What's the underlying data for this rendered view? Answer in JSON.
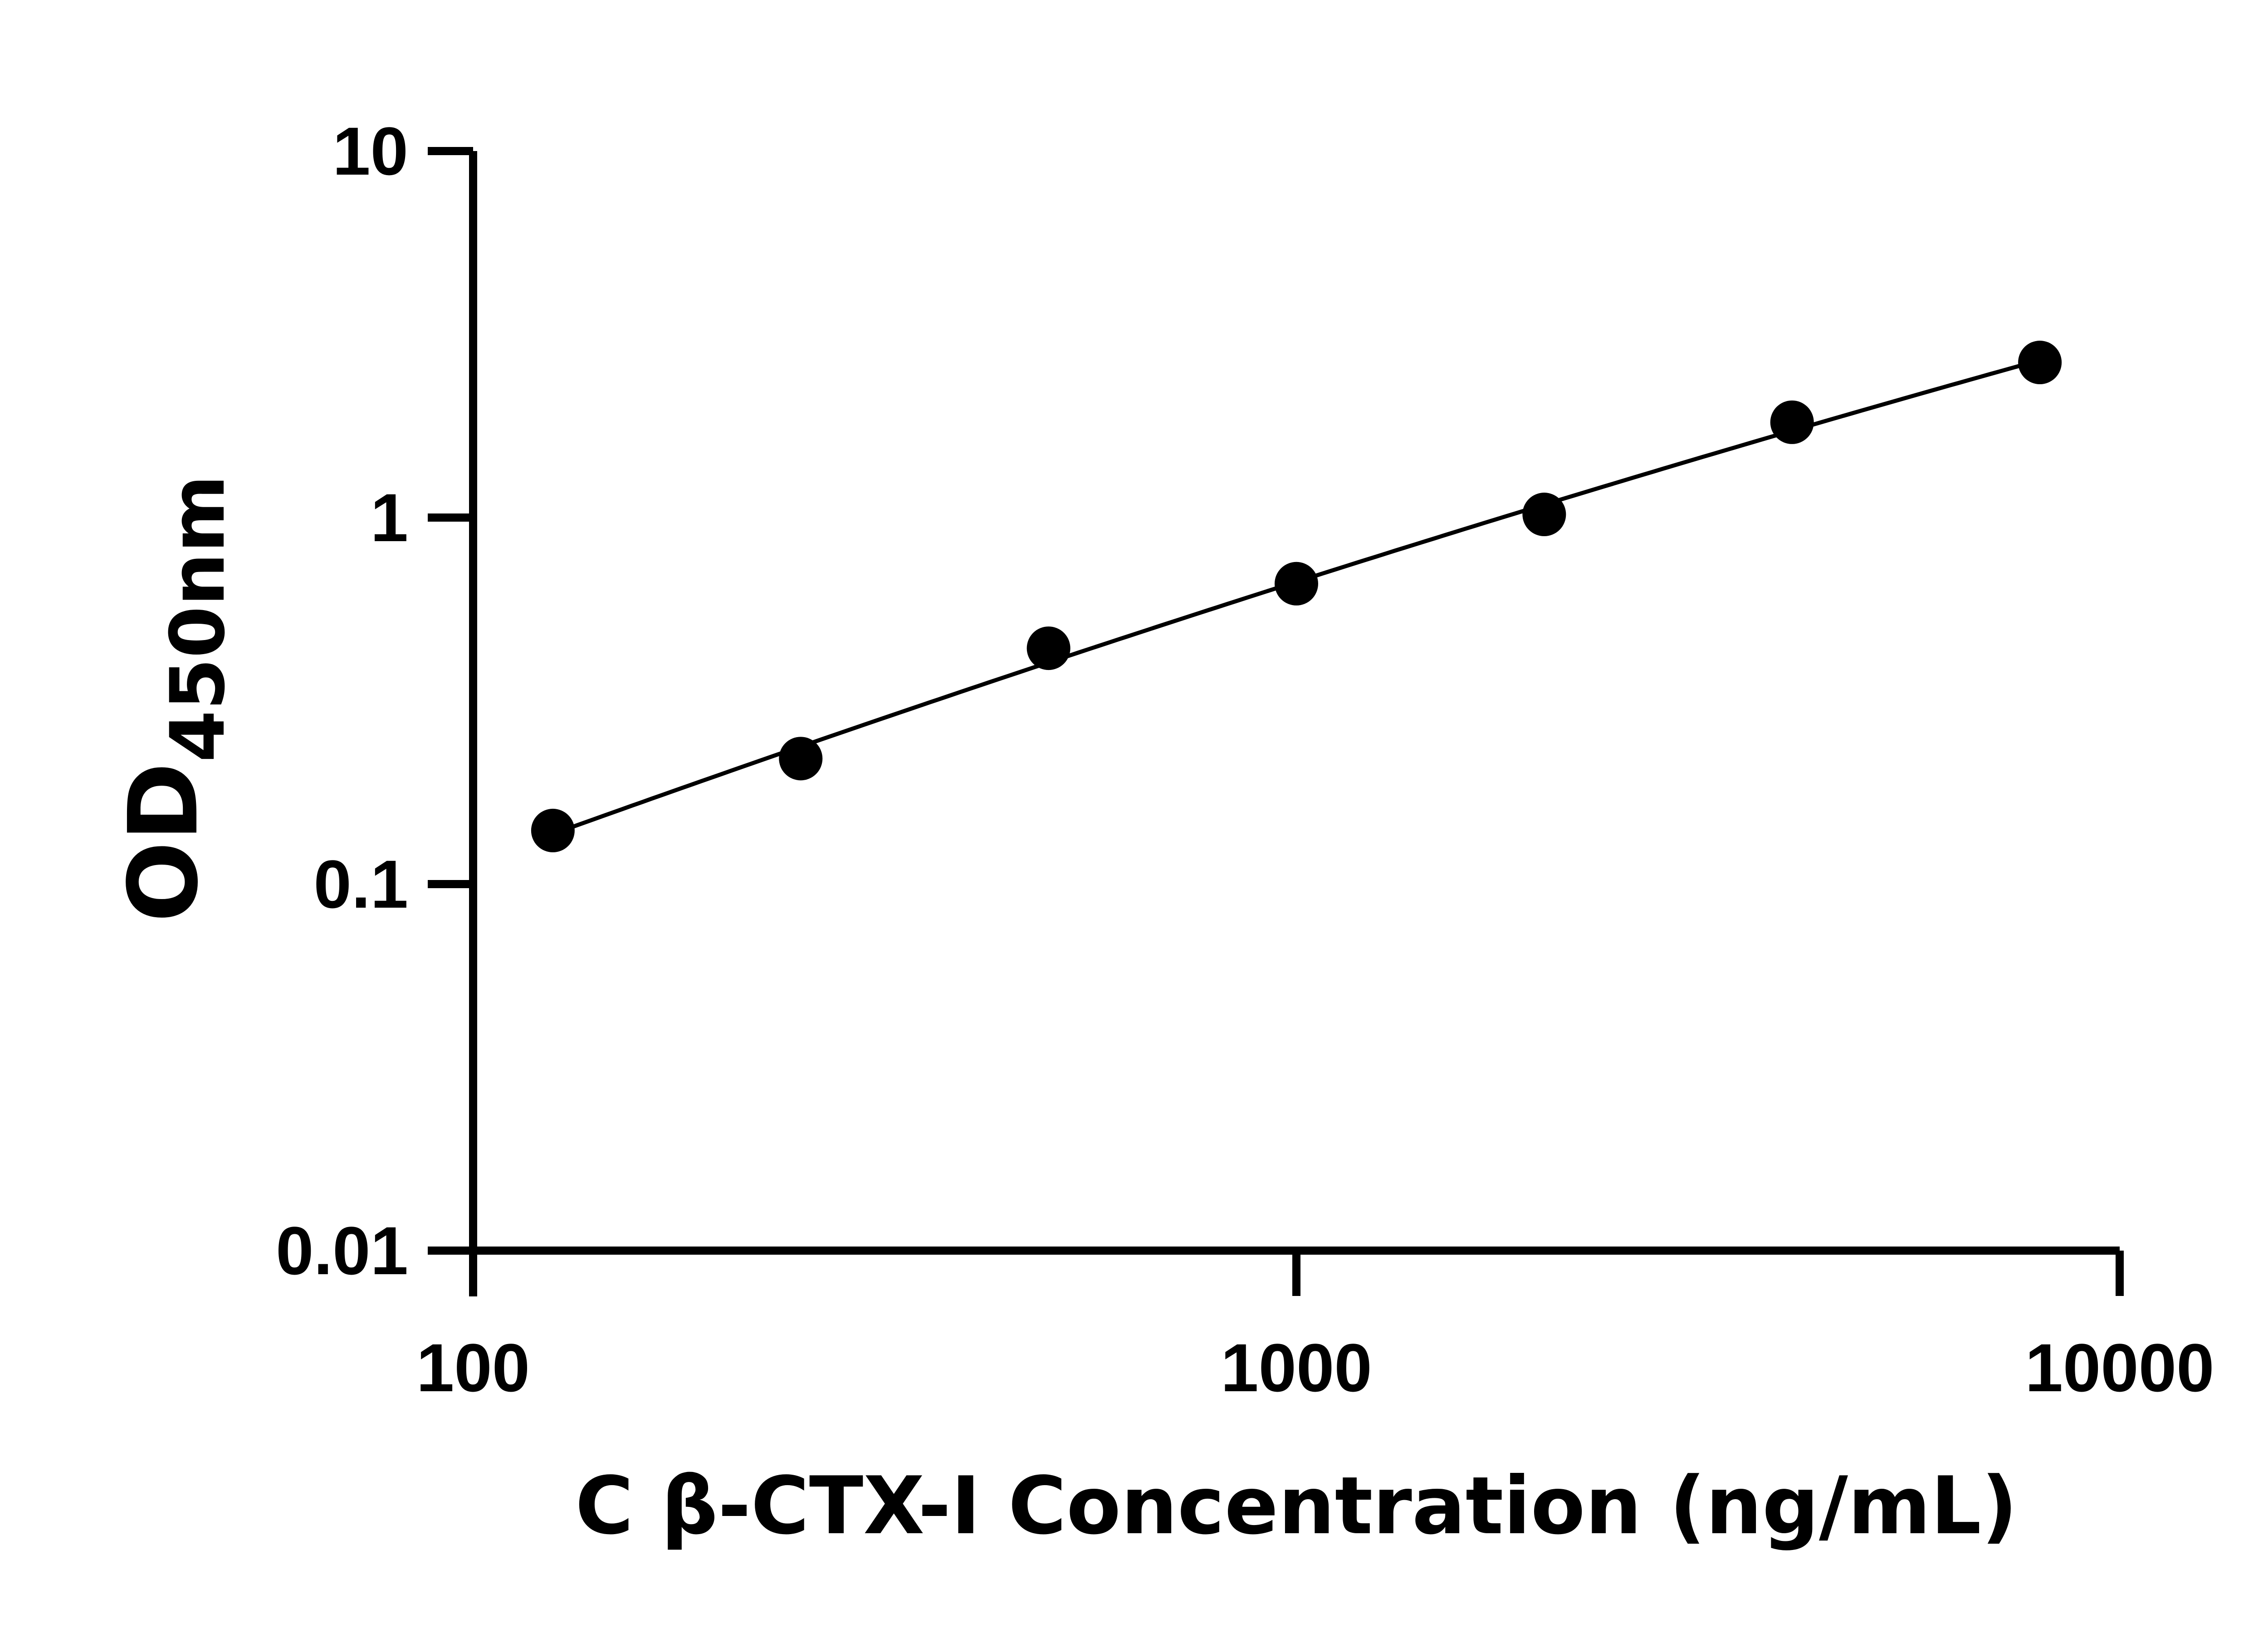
{
  "chart_data": {
    "type": "scatter",
    "xlabel": "C β-CTX-I Concentration (ng/mL)",
    "ylabel_main": "OD",
    "ylabel_sub": "450nm",
    "xscale": "log",
    "yscale": "log",
    "xlim": [
      100,
      10000
    ],
    "ylim": [
      0.01,
      10
    ],
    "x_ticks": [
      100,
      1000,
      10000
    ],
    "x_tick_labels": [
      "100",
      "1000",
      "10000"
    ],
    "y_ticks": [
      0.01,
      0.1,
      1,
      10
    ],
    "y_tick_labels": [
      "0.01",
      "0.1",
      "1",
      "10"
    ],
    "grid": false,
    "series": [
      {
        "x": [
          125,
          250,
          500,
          1000,
          2000,
          4000,
          8000
        ],
        "y": [
          0.14,
          0.22,
          0.44,
          0.66,
          1.02,
          1.82,
          2.65
        ],
        "fit": "curve",
        "color": "#000000"
      }
    ]
  }
}
